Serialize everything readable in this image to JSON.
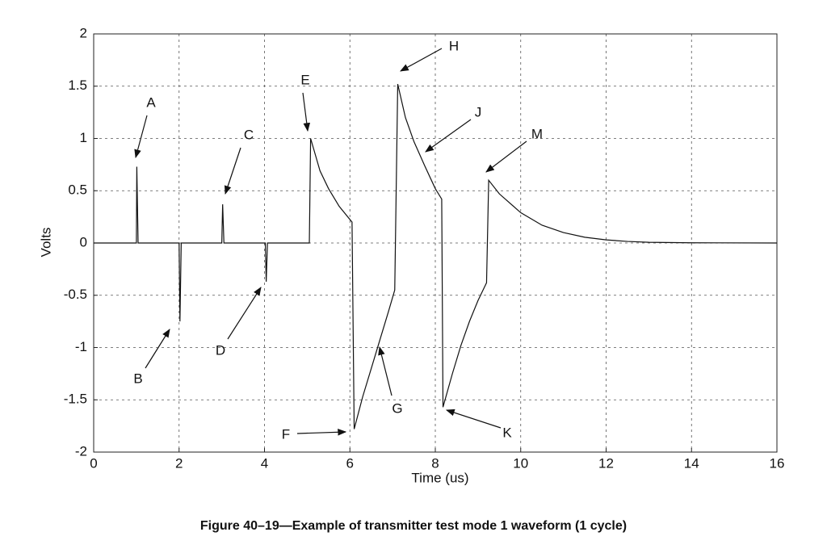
{
  "chart_data": {
    "type": "line",
    "caption": "Figure 40–19—Example of transmitter test mode 1 waveform (1 cycle)",
    "xlabel": "Time (us)",
    "ylabel": "Volts",
    "x": [
      0,
      1.0,
      1.01,
      1.04,
      2.0,
      2.02,
      2.05,
      3.0,
      3.02,
      3.05,
      4.02,
      4.04,
      4.07,
      5.05,
      5.08,
      5.3,
      5.5,
      5.75,
      6.05,
      6.1,
      6.3,
      6.5,
      6.7,
      6.9,
      7.05,
      7.12,
      7.3,
      7.5,
      7.75,
      8.0,
      8.15,
      8.18,
      8.4,
      8.6,
      8.8,
      9.0,
      9.2,
      9.25,
      9.5,
      10,
      10.5,
      11,
      11.5,
      12,
      12.5,
      13,
      14,
      16
    ],
    "values": [
      0,
      0,
      0.73,
      0,
      0,
      -0.75,
      0,
      0,
      0.37,
      0,
      0,
      -0.37,
      0,
      0,
      1.0,
      0.69,
      0.52,
      0.35,
      0.2,
      -1.78,
      -1.47,
      -1.2,
      -0.93,
      -0.66,
      -0.45,
      1.52,
      1.2,
      0.97,
      0.74,
      0.52,
      0.42,
      -1.57,
      -1.25,
      -0.98,
      -0.75,
      -0.55,
      -0.38,
      0.6,
      0.47,
      0.29,
      0.17,
      0.1,
      0.055,
      0.03,
      0.015,
      0.007,
      0.002,
      0
    ],
    "color": "#111111",
    "xlim": [
      0,
      16
    ],
    "xticks": [
      0,
      2,
      4,
      6,
      8,
      10,
      12,
      14,
      16
    ],
    "ylim": [
      -2,
      2
    ],
    "yticks": [
      -2,
      -1.5,
      -1,
      -0.5,
      0,
      0.5,
      1,
      1.5,
      2
    ],
    "grid": true,
    "annotations": [
      "A",
      "B",
      "C",
      "D",
      "E",
      "F",
      "G",
      "H",
      "J",
      "K",
      "M"
    ]
  }
}
